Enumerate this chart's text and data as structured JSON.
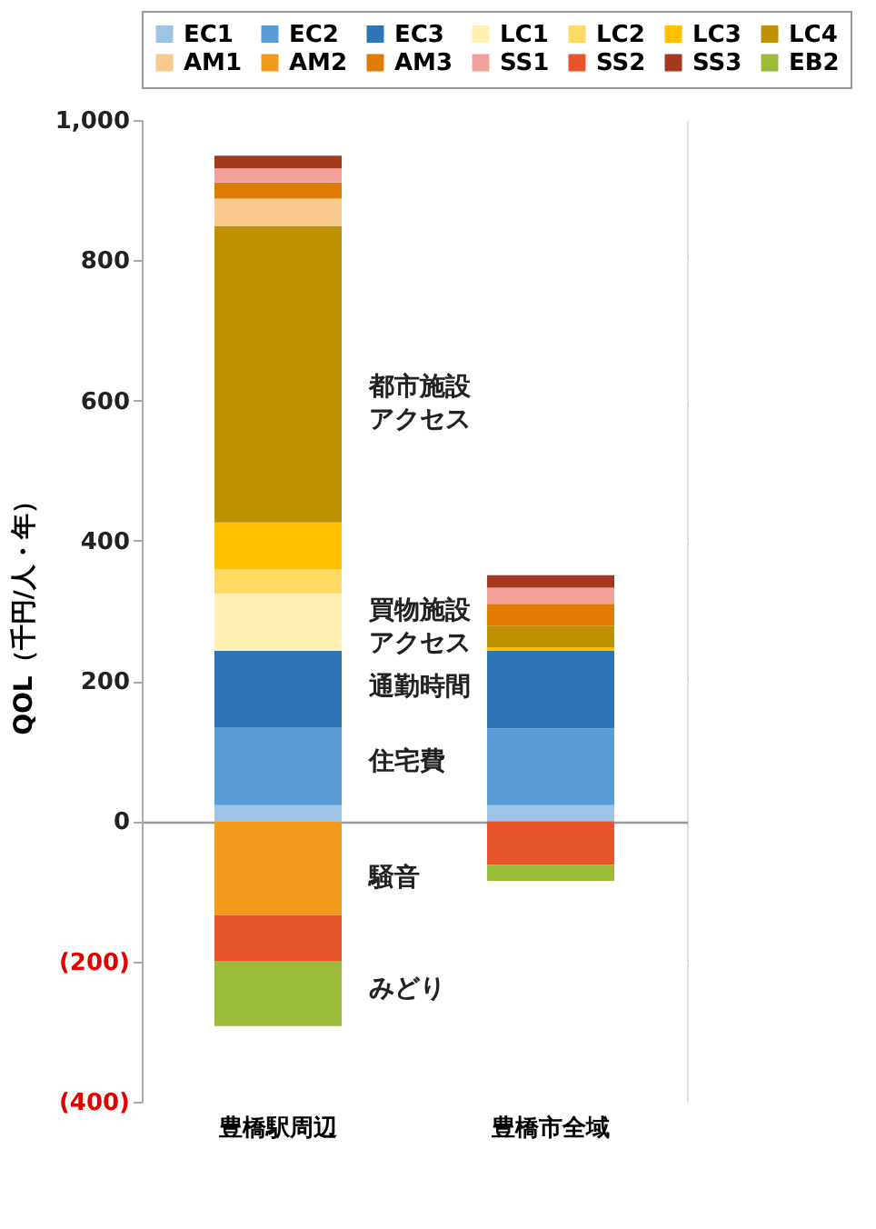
{
  "chart_data": {
    "type": "bar",
    "stacked": true,
    "ylabel": "QOL（千円/人・年）",
    "categories": [
      "豊橋駅周辺",
      "豊橋市全域"
    ],
    "ylim": [
      -400,
      1000
    ],
    "yticks": [
      {
        "value": -400,
        "label": "(400)"
      },
      {
        "value": -200,
        "label": "(200)"
      },
      0,
      200,
      400,
      600,
      800,
      {
        "value": 1000,
        "label": "1,000"
      }
    ],
    "grid": "y",
    "legend": "top",
    "series": [
      {
        "name": "EC1",
        "color": "#9dc3e6",
        "values": [
          23,
          23
        ]
      },
      {
        "name": "EC2",
        "color": "#5b9bd5",
        "values": [
          111,
          109
        ]
      },
      {
        "name": "EC3",
        "color": "#2e75b6",
        "values": [
          109,
          111
        ]
      },
      {
        "name": "LC1",
        "color": "#fff0b3",
        "values": [
          82,
          null
        ]
      },
      {
        "name": "LC2",
        "color": "#ffd966",
        "values": [
          34,
          null
        ]
      },
      {
        "name": "LC3",
        "color": "#ffc000",
        "values": [
          67,
          5
        ]
      },
      {
        "name": "LC4",
        "color": "#bf9000",
        "values": [
          423,
          31
        ]
      },
      {
        "name": "AM1",
        "color": "#f8cb8d",
        "values": [
          39,
          null
        ]
      },
      {
        "name": "AM2",
        "color": "#f29a1a",
        "values": [
          -134,
          null
        ]
      },
      {
        "name": "AM3",
        "color": "#e07b00",
        "values": [
          23,
          31
        ]
      },
      {
        "name": "SS1",
        "color": "#f4a09a",
        "values": [
          20,
          23
        ]
      },
      {
        "name": "SS2",
        "color": "#e8542a",
        "values": [
          -65,
          -62
        ]
      },
      {
        "name": "SS3",
        "color": "#a5391e",
        "values": [
          18,
          18
        ]
      },
      {
        "name": "EB2",
        "color": "#9bbb3b",
        "values": [
          -93,
          -23
        ]
      }
    ],
    "annotations": [
      "都市施設アクセス",
      "買物施設アクセス",
      "通勤時間",
      "住宅費",
      "騒音",
      "みどり"
    ]
  }
}
